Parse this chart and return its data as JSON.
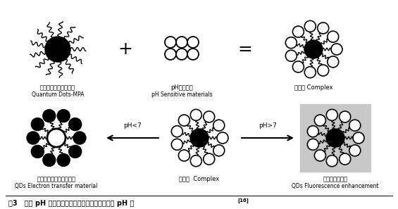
{
  "title": "图3   使用 pH 敏感恶嗪染料配基修饰的量子点检测 pH 值",
  "title_superscript": "[16]",
  "bg_color": "#ffffff",
  "label_top_left_zh": "巯基丙酸修饰的量子点",
  "label_top_left_en": "Quantum Dots-MPA",
  "label_top_mid_zh": "pH敏感材料",
  "label_top_mid_en": "pH Sensitive materials",
  "label_top_right_zh": "复合物 Complex",
  "label_bot_left_zh": "电子从量子点转移至材料",
  "label_bot_left_en": "QDs Electron transfer material",
  "label_bot_mid_zh": "复合物  Complex",
  "label_bot_right_zh": "量子点荧光增强",
  "label_bot_right_en": "QDs Fluorescence enhancement",
  "arrow_ph_left": "pH<7",
  "arrow_ph_right": "pH>7",
  "plus_sign": "+",
  "equals_sign": "="
}
